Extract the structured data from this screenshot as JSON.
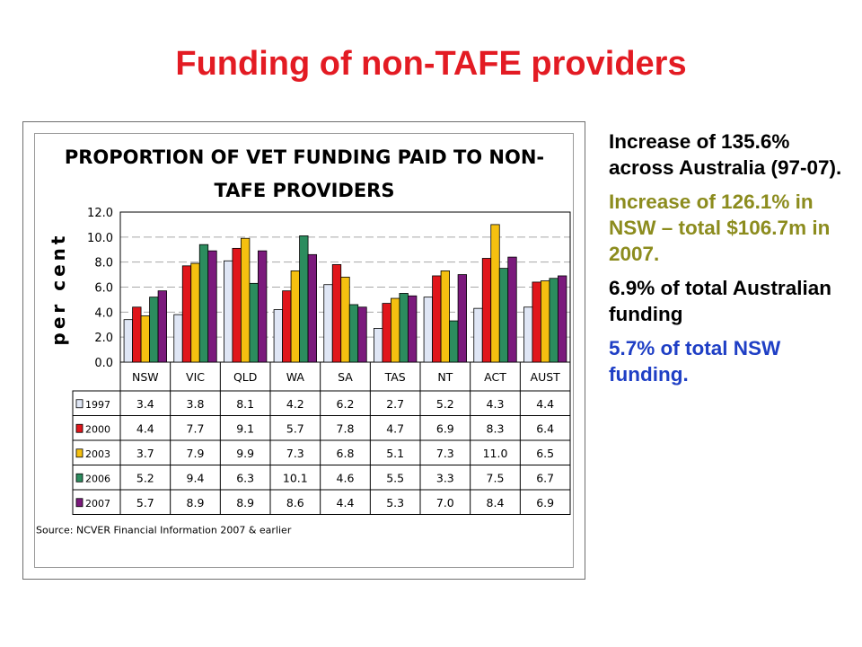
{
  "slide": {
    "title": "Funding of non-TAFE providers"
  },
  "chart_data": {
    "type": "bar",
    "title_lines": [
      "PROPORTION OF VET FUNDING PAID TO NON-",
      "TAFE PROVIDERS"
    ],
    "ylabel": "per cent",
    "xlabel": "",
    "ylim": [
      0,
      12
    ],
    "yticks": [
      "12.0",
      "10.0",
      "8.0",
      "6.0",
      "4.0",
      "2.0",
      "0.0"
    ],
    "grid": true,
    "legend": "table-left",
    "categories": [
      "NSW",
      "VIC",
      "QLD",
      "WA",
      "SA",
      "TAS",
      "NT",
      "ACT",
      "AUST"
    ],
    "series": [
      {
        "name": "1997",
        "color": "#dfe6f5",
        "values": [
          3.4,
          3.8,
          8.1,
          4.2,
          6.2,
          2.7,
          5.2,
          4.3,
          4.4
        ],
        "labels": [
          "3.4",
          "3.8",
          "8.1",
          "4.2",
          "6.2",
          "2.7",
          "5.2",
          "4.3",
          "4.4"
        ]
      },
      {
        "name": "2000",
        "color": "#e0161b",
        "values": [
          4.4,
          7.7,
          9.1,
          5.7,
          7.8,
          4.7,
          6.9,
          8.3,
          6.4
        ],
        "labels": [
          "4.4",
          "7.7",
          "9.1",
          "5.7",
          "7.8",
          "4.7",
          "6.9",
          "8.3",
          "6.4"
        ]
      },
      {
        "name": "2003",
        "color": "#f5c010",
        "values": [
          3.7,
          7.9,
          9.9,
          7.3,
          6.8,
          5.1,
          7.3,
          11.0,
          6.5
        ],
        "labels": [
          "3.7",
          "7.9",
          "9.9",
          "7.3",
          "6.8",
          "5.1",
          "7.3",
          "11.0",
          "6.5"
        ]
      },
      {
        "name": "2006",
        "color": "#2c8c5e",
        "values": [
          5.2,
          9.4,
          6.3,
          10.1,
          4.6,
          5.5,
          3.3,
          7.5,
          6.7
        ],
        "labels": [
          "5.2",
          "9.4",
          "6.3",
          "10.1",
          "4.6",
          "5.5",
          "3.3",
          "7.5",
          "6.7"
        ]
      },
      {
        "name": "2007",
        "color": "#7b1a7c",
        "values": [
          5.7,
          8.9,
          8.9,
          8.6,
          4.4,
          5.3,
          7.0,
          8.4,
          6.9
        ],
        "labels": [
          "5.7",
          "8.9",
          "8.9",
          "8.6",
          "4.4",
          "5.3",
          "7.0",
          "8.4",
          "6.9"
        ]
      }
    ],
    "source": "Source: NCVER Financial Information 2007 & earlier"
  },
  "notes": [
    {
      "text": "Increase of 135.6% across Australia (97-07).",
      "color": "#000000"
    },
    {
      "text": "Increase of 126.1% in NSW – total $106.7m in 2007.",
      "color": "#8c8c1e"
    },
    {
      "text": "6.9% of total Australian funding",
      "color": "#000000"
    },
    {
      "text": "5.7% of total NSW funding.",
      "color": "#1f3fc5"
    }
  ]
}
